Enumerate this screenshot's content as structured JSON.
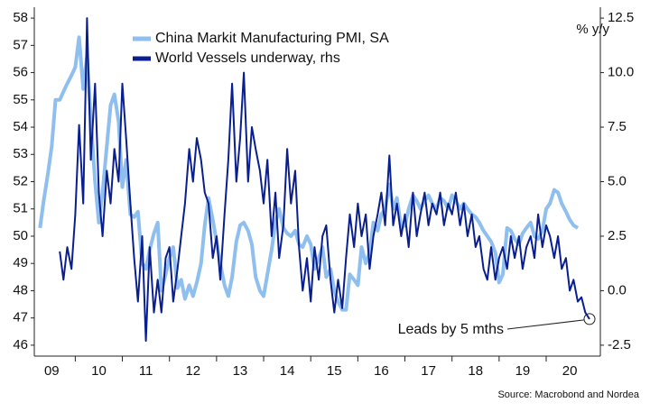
{
  "chart_data": {
    "type": "line",
    "source": "Source: Macrobond and Nordea",
    "y2_label": "% y/y",
    "annotation": "Leads by 5 mths",
    "xlim": [
      2009.13,
      2021.15
    ],
    "xticks": [
      {
        "value": 2009.5,
        "label": "09"
      },
      {
        "value": 2010.5,
        "label": "10"
      },
      {
        "value": 2011.5,
        "label": "11"
      },
      {
        "value": 2012.5,
        "label": "12"
      },
      {
        "value": 2013.5,
        "label": "13"
      },
      {
        "value": 2014.5,
        "label": "14"
      },
      {
        "value": 2015.5,
        "label": "15"
      },
      {
        "value": 2016.5,
        "label": "16"
      },
      {
        "value": 2017.5,
        "label": "17"
      },
      {
        "value": 2018.5,
        "label": "18"
      },
      {
        "value": 2019.5,
        "label": "19"
      },
      {
        "value": 2020.5,
        "label": "20"
      }
    ],
    "ylim": [
      45.6,
      58.4
    ],
    "yticks": [
      46,
      47,
      48,
      49,
      50,
      51,
      52,
      53,
      54,
      55,
      56,
      57,
      58
    ],
    "y2lim": [
      -3,
      13
    ],
    "y2ticks": [
      {
        "value": -2.5,
        "label": "-2.5"
      },
      {
        "value": 0,
        "label": "0.0"
      },
      {
        "value": 2.5,
        "label": "2.5"
      },
      {
        "value": 5,
        "label": "5.0"
      },
      {
        "value": 7.5,
        "label": "7.5"
      },
      {
        "value": 10,
        "label": "10.0"
      },
      12.5
    ],
    "x": [
      2009.25,
      2009.33,
      2009.42,
      2009.5,
      2009.58,
      2009.67,
      2009.75,
      2009.83,
      2009.92,
      2010,
      2010.08,
      2010.17,
      2010.25,
      2010.33,
      2010.42,
      2010.5,
      2010.58,
      2010.67,
      2010.75,
      2010.83,
      2010.92,
      2011,
      2011.08,
      2011.17,
      2011.25,
      2011.33,
      2011.42,
      2011.5,
      2011.58,
      2011.67,
      2011.75,
      2011.83,
      2011.92,
      2012,
      2012.08,
      2012.17,
      2012.25,
      2012.33,
      2012.42,
      2012.5,
      2012.58,
      2012.67,
      2012.75,
      2012.83,
      2012.92,
      2013,
      2013.08,
      2013.17,
      2013.25,
      2013.33,
      2013.42,
      2013.5,
      2013.58,
      2013.67,
      2013.75,
      2013.83,
      2013.92,
      2014,
      2014.08,
      2014.17,
      2014.25,
      2014.33,
      2014.42,
      2014.5,
      2014.58,
      2014.67,
      2014.75,
      2014.83,
      2014.92,
      2015,
      2015.08,
      2015.17,
      2015.25,
      2015.33,
      2015.42,
      2015.5,
      2015.58,
      2015.67,
      2015.75,
      2015.83,
      2015.92,
      2016,
      2016.08,
      2016.17,
      2016.25,
      2016.33,
      2016.42,
      2016.5,
      2016.58,
      2016.67,
      2016.75,
      2016.83,
      2016.92,
      2017,
      2017.08,
      2017.17,
      2017.25,
      2017.33,
      2017.42,
      2017.5,
      2017.58,
      2017.67,
      2017.75,
      2017.83,
      2017.92,
      2018,
      2018.08,
      2018.17,
      2018.25,
      2018.33,
      2018.42,
      2018.5,
      2018.58,
      2018.67,
      2018.75,
      2018.83,
      2018.92,
      2019,
      2019.08,
      2019.17,
      2019.25,
      2019.33,
      2019.42,
      2019.5,
      2019.58,
      2019.67,
      2019.75,
      2019.83,
      2019.92,
      2020,
      2020.08,
      2020.17,
      2020.25,
      2020.33,
      2020.42,
      2020.5,
      2020.58,
      2020.67,
      2020.75,
      2020.83,
      2020.92
    ],
    "series": [
      {
        "name": "China Markit Manufacturing PMI, SA",
        "color": "#8fbfee",
        "values": [
          50.3,
          51.3,
          52.3,
          53.3,
          55.0,
          55.0,
          55.3,
          55.6,
          55.9,
          56.2,
          57.3,
          55.4,
          56.6,
          54.3,
          52.0,
          50.5,
          51.6,
          53.3,
          54.8,
          55.2,
          54.2,
          51.8,
          52.8,
          50.8,
          50.7,
          50.9,
          49.0,
          48.8,
          49.5,
          50.1,
          50.5,
          48.0,
          48.6,
          49.2,
          49.6,
          48.1,
          48.4,
          47.7,
          48.2,
          47.8,
          48.3,
          49.0,
          50.4,
          51.4,
          50.6,
          49.8,
          49.0,
          48.2,
          47.8,
          48.5,
          49.8,
          50.4,
          50.5,
          50.2,
          49.7,
          48.5,
          48.0,
          47.8,
          48.6,
          49.5,
          50.5,
          51.0,
          50.3,
          50.1,
          50.0,
          50.2,
          49.7,
          49.6,
          50.0,
          49.7,
          48.8,
          49.2,
          49.6,
          48.5,
          48.8,
          48.0,
          47.6,
          47.3,
          47.3,
          48.6,
          48.4,
          48.2,
          49.6,
          49.0,
          49.4,
          50.5,
          50.2,
          50.8,
          51.0,
          51.9,
          51.0,
          51.4,
          50.3,
          50.4,
          51.0,
          51.5,
          51.3,
          51.0,
          51.3,
          51.5,
          51.2,
          51.0,
          51.4,
          51.3,
          51.0,
          51.5,
          51.3,
          51.0,
          51.2,
          51.0,
          50.8,
          50.7,
          50.5,
          50.2,
          50.0,
          49.8,
          49.4,
          48.3,
          48.6,
          50.3,
          50.2,
          49.9,
          49.7,
          50.1,
          50.3,
          50.5,
          50.0,
          49.9,
          50.2,
          51.0,
          51.2,
          51.7,
          51.6,
          51.2,
          50.9,
          50.6,
          50.4,
          50.3,
          null,
          null,
          null
        ]
      },
      {
        "name": "World Vessels underway, rhs",
        "color": "#0a1f8f",
        "axis": "y2",
        "values": [
          null,
          null,
          null,
          null,
          null,
          1.8,
          0.5,
          2.0,
          1.0,
          3.5,
          7.6,
          4.0,
          12.5,
          6.0,
          9.5,
          4.5,
          2.5,
          5.5,
          4.0,
          6.5,
          5.0,
          9.5,
          7.0,
          4.0,
          1.5,
          -0.5,
          2.5,
          -2.3,
          2.0,
          -1.0,
          0.5,
          -1.0,
          1.5,
          2.0,
          -0.5,
          1.0,
          2.5,
          4.0,
          6.5,
          5.0,
          7.0,
          6.0,
          4.5,
          4.0,
          1.5,
          2.5,
          0.5,
          3.5,
          6.0,
          9.5,
          5.0,
          7.0,
          10.0,
          5.0,
          7.5,
          6.5,
          5.5,
          4.0,
          6.0,
          2.5,
          4.5,
          1.5,
          3.0,
          6.5,
          4.0,
          5.5,
          2.0,
          0.0,
          1.5,
          -0.5,
          2.0,
          0.5,
          2.5,
          3.0,
          0.5,
          -1.0,
          0.5,
          -0.8,
          1.5,
          3.5,
          2.0,
          4.0,
          2.5,
          3.5,
          1.0,
          2.5,
          3.5,
          4.5,
          3.0,
          6.2,
          3.0,
          4.0,
          2.5,
          3.5,
          2.0,
          4.5,
          2.5,
          3.5,
          4.5,
          3.0,
          4.0,
          3.5,
          4.5,
          3.0,
          4.0,
          3.5,
          4.5,
          3.0,
          4.0,
          2.5,
          3.5,
          2.0,
          2.5,
          1.0,
          0.5,
          2.0,
          0.5,
          1.5,
          2.0,
          1.0,
          2.5,
          1.5,
          2.5,
          1.0,
          2.0,
          2.5,
          1.5,
          3.5,
          2.0,
          3.0,
          2.5,
          1.5,
          2.5,
          1.0,
          1.5,
          0.0,
          0.5,
          -0.5,
          -0.3,
          -1.0,
          -1.3
        ]
      }
    ]
  }
}
